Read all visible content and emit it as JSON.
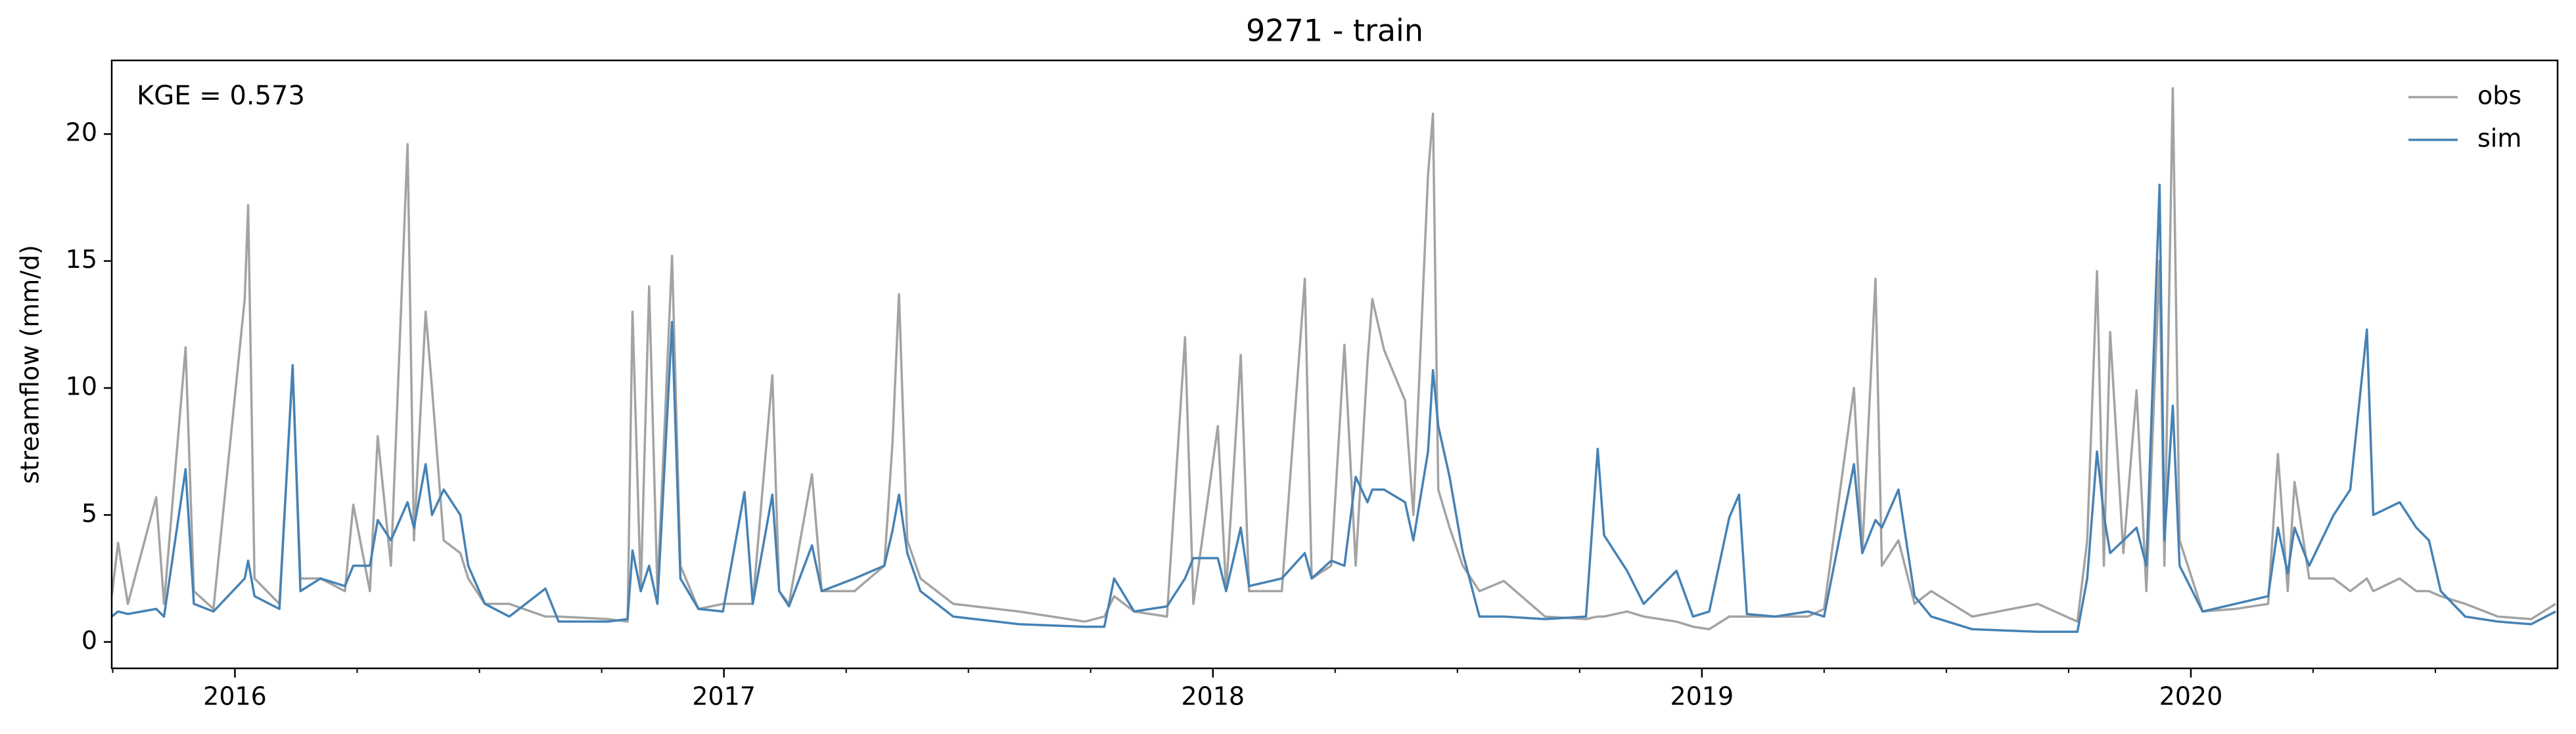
{
  "chart_data": {
    "type": "line",
    "title": "9271 - train",
    "ylabel": "streamflow (mm/d)",
    "annotation": "KGE = 0.573",
    "legend": "upper right",
    "grid": false,
    "xlim": [
      2015.748,
      2020.75
    ],
    "xticks": [
      2016,
      2017,
      2018,
      2019,
      2020
    ],
    "xminorticks": [
      2015.75,
      2016.25,
      2016.5,
      2016.75,
      2017.25,
      2017.5,
      2017.75,
      2018.25,
      2018.5,
      2018.75,
      2019.25,
      2019.5,
      2019.75,
      2020.25,
      2020.5
    ],
    "ylim": [
      -1.04,
      22.9
    ],
    "yticks": [
      0,
      5,
      10,
      15,
      20
    ],
    "x": [
      2015.748,
      2015.761,
      2015.781,
      2015.839,
      2015.855,
      2015.899,
      2015.916,
      2015.956,
      2016.02,
      2016.027,
      2016.04,
      2016.091,
      2016.118,
      2016.134,
      2016.175,
      2016.225,
      2016.242,
      2016.276,
      2016.292,
      2016.319,
      2016.353,
      2016.366,
      2016.39,
      2016.403,
      2016.427,
      2016.461,
      2016.477,
      2016.511,
      2016.561,
      2016.635,
      2016.662,
      2016.763,
      2016.803,
      2016.813,
      2016.83,
      2016.847,
      2016.864,
      2016.894,
      2016.911,
      2016.948,
      2016.998,
      2017.042,
      2017.059,
      2017.099,
      2017.113,
      2017.133,
      2017.18,
      2017.2,
      2017.267,
      2017.328,
      2017.345,
      2017.358,
      2017.375,
      2017.402,
      2017.469,
      2017.603,
      2017.738,
      2017.778,
      2017.798,
      2017.839,
      2017.906,
      2017.943,
      2017.96,
      2018.01,
      2018.027,
      2018.057,
      2018.074,
      2018.141,
      2018.188,
      2018.202,
      2018.242,
      2018.269,
      2018.292,
      2018.316,
      2018.326,
      2018.35,
      2018.393,
      2018.41,
      2018.44,
      2018.45,
      2018.461,
      2018.484,
      2018.511,
      2018.545,
      2018.595,
      2018.679,
      2018.763,
      2018.787,
      2018.8,
      2018.847,
      2018.881,
      2018.948,
      2018.982,
      2019.015,
      2019.056,
      2019.076,
      2019.092,
      2019.15,
      2019.217,
      2019.25,
      2019.311,
      2019.328,
      2019.355,
      2019.368,
      2019.402,
      2019.435,
      2019.469,
      2019.553,
      2019.687,
      2019.768,
      2019.788,
      2019.808,
      2019.822,
      2019.835,
      2019.862,
      2019.889,
      2019.909,
      2019.936,
      2019.946,
      2019.963,
      2019.977,
      2020.024,
      2020.091,
      2020.158,
      2020.178,
      2020.198,
      2020.212,
      2020.242,
      2020.292,
      2020.326,
      2020.36,
      2020.373,
      2020.427,
      2020.461,
      2020.487,
      2020.511,
      2020.561,
      2020.628,
      2020.696,
      2020.746
    ],
    "series": [
      {
        "name": "obs",
        "color": "#a3a3a3",
        "values": [
          1.8,
          3.9,
          1.5,
          5.7,
          1.5,
          11.6,
          2.0,
          1.3,
          13.5,
          17.2,
          2.5,
          1.5,
          10.8,
          2.5,
          2.5,
          2.0,
          5.4,
          2.0,
          8.1,
          3.0,
          19.6,
          4.0,
          13.0,
          10.0,
          4.0,
          3.5,
          2.5,
          1.5,
          1.5,
          1.0,
          1.0,
          0.9,
          0.8,
          13.0,
          2.0,
          14.0,
          2.0,
          15.2,
          3.0,
          1.3,
          1.5,
          1.5,
          1.5,
          10.5,
          2.0,
          1.5,
          6.6,
          2.0,
          2.0,
          3.0,
          7.9,
          13.7,
          4.0,
          2.5,
          1.5,
          1.2,
          0.8,
          1.0,
          1.8,
          1.2,
          1.0,
          12.0,
          1.5,
          8.5,
          2.0,
          11.3,
          2.0,
          2.0,
          14.3,
          2.5,
          3.0,
          11.7,
          3.0,
          11.0,
          13.5,
          11.5,
          9.5,
          5.0,
          18.4,
          20.8,
          6.0,
          4.5,
          3.0,
          2.0,
          2.4,
          1.0,
          0.9,
          1.0,
          1.0,
          1.2,
          1.0,
          0.8,
          0.6,
          0.5,
          1.0,
          1.0,
          1.0,
          1.0,
          1.0,
          1.3,
          10.0,
          3.5,
          14.3,
          3.0,
          4.0,
          1.5,
          2.0,
          1.0,
          1.5,
          0.8,
          4.0,
          14.6,
          3.0,
          12.2,
          3.5,
          9.9,
          2.0,
          15.0,
          3.0,
          21.8,
          4.0,
          1.2,
          1.3,
          1.5,
          7.4,
          2.0,
          6.3,
          2.5,
          2.5,
          2.0,
          2.5,
          2.0,
          2.5,
          2.0,
          2.0,
          1.8,
          1.5,
          1.0,
          0.9,
          1.5
        ]
      },
      {
        "name": "sim",
        "color": "#4682b4",
        "values": [
          1.0,
          1.2,
          1.1,
          1.3,
          1.0,
          6.8,
          1.5,
          1.2,
          2.5,
          3.2,
          1.8,
          1.3,
          10.9,
          2.0,
          2.5,
          2.2,
          3.0,
          3.0,
          4.8,
          4.0,
          5.5,
          4.5,
          7.0,
          5.0,
          6.0,
          5.0,
          3.0,
          1.5,
          1.0,
          2.1,
          0.8,
          0.8,
          0.9,
          3.6,
          2.0,
          3.0,
          1.5,
          12.6,
          2.5,
          1.3,
          1.2,
          5.9,
          1.5,
          5.8,
          2.0,
          1.4,
          3.8,
          2.0,
          2.5,
          3.0,
          4.4,
          5.8,
          3.5,
          2.0,
          1.0,
          0.7,
          0.6,
          0.6,
          2.5,
          1.2,
          1.4,
          2.5,
          3.3,
          3.3,
          2.0,
          4.5,
          2.2,
          2.5,
          3.5,
          2.5,
          3.2,
          3.0,
          6.5,
          5.5,
          6.0,
          6.0,
          5.5,
          4.0,
          7.5,
          10.7,
          8.5,
          6.5,
          3.5,
          1.0,
          1.0,
          0.9,
          1.0,
          7.6,
          4.2,
          2.8,
          1.5,
          2.8,
          1.0,
          1.2,
          4.9,
          5.8,
          1.1,
          1.0,
          1.2,
          1.0,
          7.0,
          3.5,
          4.8,
          4.5,
          6.0,
          1.8,
          1.0,
          0.5,
          0.4,
          0.4,
          2.5,
          7.5,
          5.0,
          3.5,
          4.0,
          4.5,
          3.0,
          18.0,
          4.0,
          9.3,
          3.0,
          1.2,
          1.5,
          1.8,
          4.5,
          2.7,
          4.5,
          3.0,
          5.0,
          6.0,
          12.3,
          5.0,
          5.5,
          4.5,
          4.0,
          2.0,
          1.0,
          0.8,
          0.7,
          1.2
        ]
      }
    ]
  }
}
